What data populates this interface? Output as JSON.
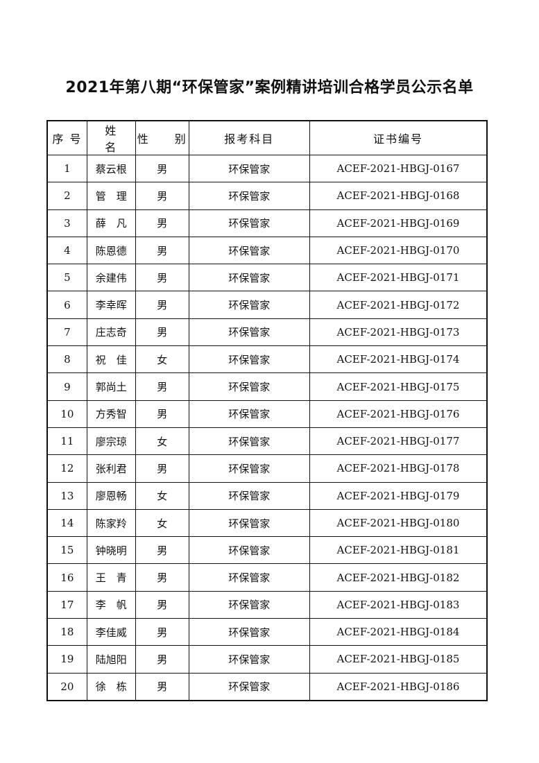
{
  "title": "2021年第八期“环保管家”案例精讲培训合格学员公示名单",
  "table": {
    "headers": [
      "序 号",
      "姓　　名",
      "性　　别",
      "报考科目",
      "证书编号"
    ],
    "rows": [
      [
        "1",
        "蔡云根",
        "男",
        "环保管家",
        "ACEF-2021-HBGJ-0167"
      ],
      [
        "2",
        "管　理",
        "男",
        "环保管家",
        "ACEF-2021-HBGJ-0168"
      ],
      [
        "3",
        "薛　凡",
        "男",
        "环保管家",
        "ACEF-2021-HBGJ-0169"
      ],
      [
        "4",
        "陈恩德",
        "男",
        "环保管家",
        "ACEF-2021-HBGJ-0170"
      ],
      [
        "5",
        "余建伟",
        "男",
        "环保管家",
        "ACEF-2021-HBGJ-0171"
      ],
      [
        "6",
        "李幸晖",
        "男",
        "环保管家",
        "ACEF-2021-HBGJ-0172"
      ],
      [
        "7",
        "庄志奇",
        "男",
        "环保管家",
        "ACEF-2021-HBGJ-0173"
      ],
      [
        "8",
        "祝　佳",
        "女",
        "环保管家",
        "ACEF-2021-HBGJ-0174"
      ],
      [
        "9",
        "郭尚土",
        "男",
        "环保管家",
        "ACEF-2021-HBGJ-0175"
      ],
      [
        "10",
        "方秀智",
        "男",
        "环保管家",
        "ACEF-2021-HBGJ-0176"
      ],
      [
        "11",
        "廖宗琼",
        "女",
        "环保管家",
        "ACEF-2021-HBGJ-0177"
      ],
      [
        "12",
        "张利君",
        "男",
        "环保管家",
        "ACEF-2021-HBGJ-0178"
      ],
      [
        "13",
        "廖恩畅",
        "女",
        "环保管家",
        "ACEF-2021-HBGJ-0179"
      ],
      [
        "14",
        "陈家羚",
        "女",
        "环保管家",
        "ACEF-2021-HBGJ-0180"
      ],
      [
        "15",
        "钟晓明",
        "男",
        "环保管家",
        "ACEF-2021-HBGJ-0181"
      ],
      [
        "16",
        "王　青",
        "男",
        "环保管家",
        "ACEF-2021-HBGJ-0182"
      ],
      [
        "17",
        "李　帆",
        "男",
        "环保管家",
        "ACEF-2021-HBGJ-0183"
      ],
      [
        "18",
        "李佳威",
        "男",
        "环保管家",
        "ACEF-2021-HBGJ-0184"
      ],
      [
        "19",
        "陆旭阳",
        "男",
        "环保管家",
        "ACEF-2021-HBGJ-0185"
      ],
      [
        "20",
        "徐　栋",
        "男",
        "环保管家",
        "ACEF-2021-HBGJ-0186"
      ]
    ]
  }
}
